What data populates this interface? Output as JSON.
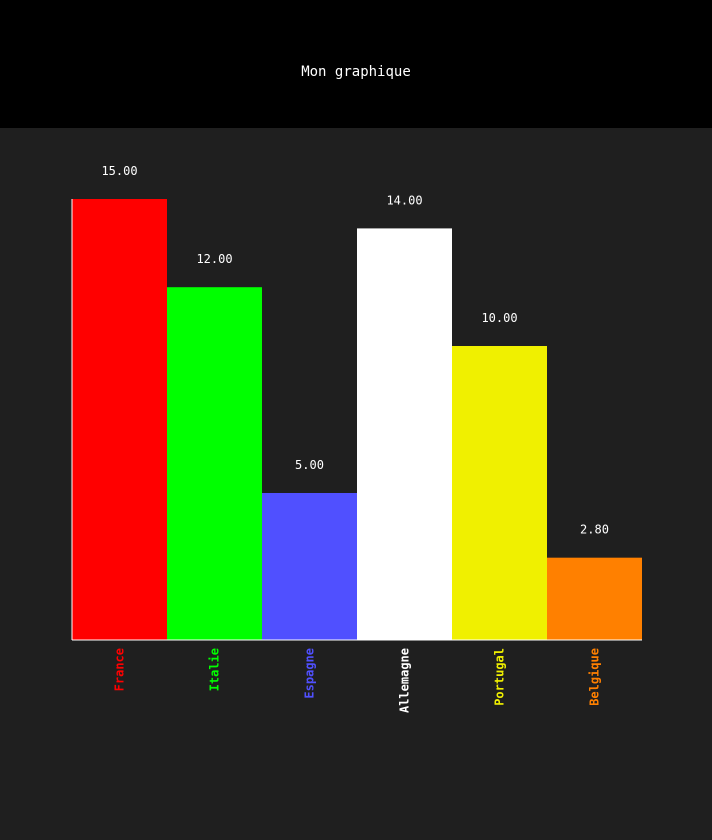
{
  "page": {
    "title": "Mon graphique"
  },
  "colors": {
    "header_background": "#000000",
    "plot_background": "#1f1f1f",
    "axis": "#ffffff",
    "value_label": "#ffffff"
  },
  "chart_data": {
    "type": "bar",
    "title": "Mon graphique",
    "xlabel": "",
    "ylabel": "",
    "ylim": [
      0,
      15
    ],
    "grid": false,
    "categories": [
      "France",
      "Italie",
      "Espagne",
      "Allemagne",
      "Portugal",
      "Belgique"
    ],
    "values": [
      15.0,
      12.0,
      5.0,
      14.0,
      10.0,
      2.8
    ],
    "value_labels": [
      "15.00",
      "12.00",
      "5.00",
      "14.00",
      "10.00",
      "2.80"
    ],
    "bar_colors": [
      "#ff0000",
      "#00ff00",
      "#5050ff",
      "#ffffff",
      "#f0f000",
      "#ff8000"
    ]
  }
}
